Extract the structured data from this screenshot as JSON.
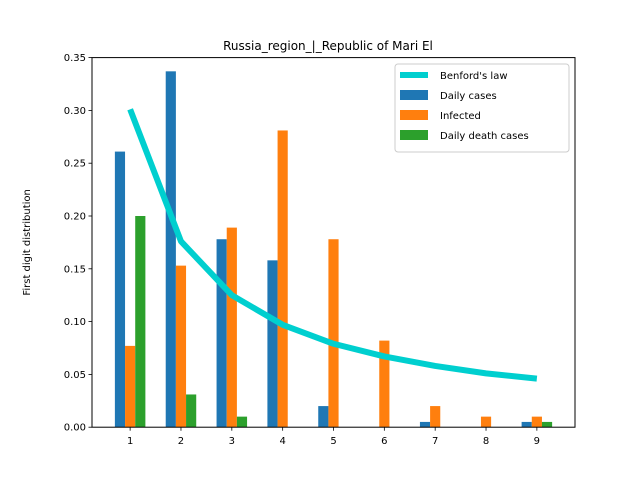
{
  "chart_data": {
    "type": "bar",
    "title": "Russia_region_|_Republic of Mari El",
    "xlabel": "",
    "ylabel": "First digit distribution",
    "categories": [
      "1",
      "2",
      "3",
      "4",
      "5",
      "6",
      "7",
      "8",
      "9"
    ],
    "x": [
      1,
      2,
      3,
      4,
      5,
      6,
      7,
      8,
      9
    ],
    "ylim": [
      0,
      0.35
    ],
    "xlim": [
      0.25,
      9.75
    ],
    "yticks": [
      "0.00",
      "0.05",
      "0.10",
      "0.15",
      "0.20",
      "0.25",
      "0.30",
      "0.35"
    ],
    "legend_position": "top-right",
    "grid": false,
    "series": [
      {
        "name": "Daily cases",
        "type": "bar",
        "color": "#1f77b4",
        "values": [
          0.261,
          0.337,
          0.178,
          0.158,
          0.02,
          0.0,
          0.005,
          0.0,
          0.005
        ]
      },
      {
        "name": "Infected",
        "type": "bar",
        "color": "#ff7f0e",
        "values": [
          0.077,
          0.153,
          0.189,
          0.281,
          0.178,
          0.082,
          0.02,
          0.01,
          0.01
        ]
      },
      {
        "name": "Daily death cases",
        "type": "bar",
        "color": "#2ca02c",
        "values": [
          0.2,
          0.031,
          0.01,
          0.0,
          0.0,
          0.0,
          0.0,
          0.0,
          0.005
        ]
      },
      {
        "name": "Benford's law",
        "type": "line",
        "color": "#00cfcf",
        "values": [
          0.301,
          0.176,
          0.125,
          0.097,
          0.079,
          0.067,
          0.058,
          0.051,
          0.046
        ]
      }
    ]
  }
}
